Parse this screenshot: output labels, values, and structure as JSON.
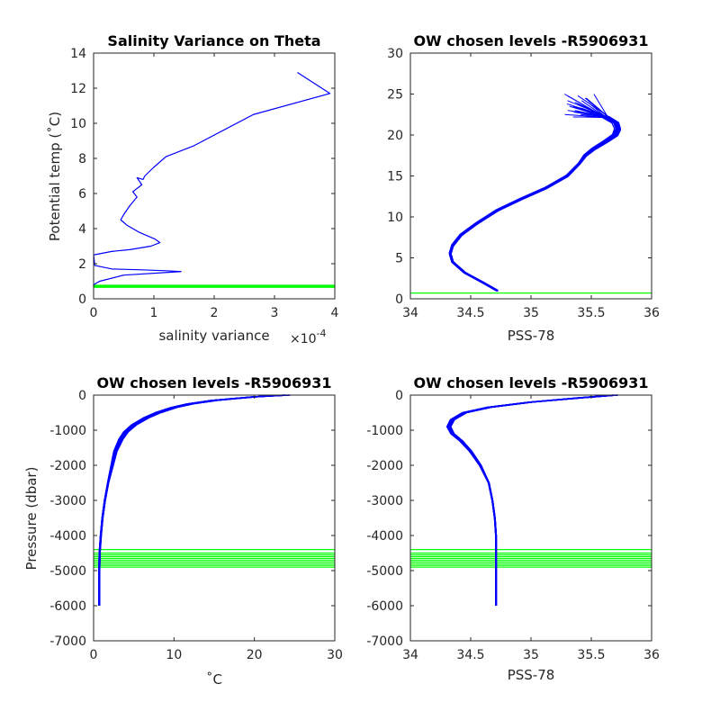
{
  "chart_data": [
    {
      "type": "line",
      "title": "Salinity Variance on Theta",
      "xlabel": "salinity variance",
      "x_exponent_label": "×10",
      "x_exponent_power": "-4",
      "ylabel": "Potential temp (˚C)",
      "xlim": [
        0,
        4
      ],
      "ylim": [
        0,
        14
      ],
      "xticks": [
        0,
        1,
        2,
        3,
        4
      ],
      "yticks": [
        0,
        2,
        4,
        6,
        8,
        10,
        12,
        14
      ],
      "xtick_labels": [
        "0",
        "1",
        "2",
        "3",
        "4"
      ],
      "ytick_labels": [
        "0",
        "2",
        "4",
        "6",
        "8",
        "10",
        "12",
        "14"
      ],
      "series": [
        {
          "color": "#0000ff",
          "x": [
            3.38,
            3.92,
            2.65,
            1.65,
            1.2,
            1.0,
            0.85,
            0.82,
            0.72,
            0.8,
            0.65,
            0.72,
            0.6,
            0.5,
            0.45,
            0.55,
            0.75,
            1.02,
            1.1,
            0.95,
            0.6,
            0.3,
            0.0,
            0.02,
            0.3,
            0.8,
            1.2,
            1.45,
            0.5,
            0.1,
            0.0,
            0.0
          ],
          "y": [
            12.9,
            11.7,
            10.5,
            8.7,
            8.1,
            7.5,
            7.0,
            6.8,
            6.9,
            6.5,
            6.1,
            5.8,
            5.3,
            4.8,
            4.5,
            4.2,
            3.8,
            3.4,
            3.2,
            3.0,
            2.8,
            2.7,
            2.5,
            1.9,
            1.7,
            1.65,
            1.6,
            1.55,
            1.35,
            1.0,
            0.8,
            0.7
          ]
        }
      ],
      "reference_levels": {
        "color": "#00ff00",
        "y": [
          0.65,
          0.68,
          0.71,
          0.74,
          0.77
        ]
      }
    },
    {
      "type": "line",
      "title": "OW chosen levels -R5906931",
      "xlabel": "PSS-78",
      "ylabel": "",
      "xlim": [
        34,
        36
      ],
      "ylim": [
        0,
        30
      ],
      "xticks": [
        34,
        34.5,
        35,
        35.5,
        36
      ],
      "yticks": [
        0,
        5,
        10,
        15,
        20,
        25,
        30
      ],
      "xtick_labels": [
        "34",
        "34.5",
        "35",
        "35.5",
        "36"
      ],
      "ytick_labels": [
        "0",
        "5",
        "10",
        "15",
        "20",
        "25",
        "30"
      ],
      "profile": {
        "color": "#0000ff",
        "s": [
          34.72,
          34.6,
          34.45,
          34.35,
          34.33,
          34.35,
          34.42,
          34.55,
          34.72,
          34.92,
          35.12,
          35.3,
          35.4,
          35.45,
          35.52,
          35.62,
          35.7,
          35.72,
          35.7,
          35.62
        ],
        "t": [
          1.0,
          2.0,
          3.2,
          4.5,
          5.5,
          6.5,
          7.8,
          9.2,
          10.8,
          12.2,
          13.5,
          15.0,
          16.5,
          17.5,
          18.3,
          19.2,
          20.0,
          20.7,
          21.5,
          22.2
        ],
        "count": 24,
        "spread_s": 0.06,
        "spread_t": 0.2,
        "tip_tails_t": [
          22.5,
          23.0,
          23.5,
          24.0,
          24.5,
          25.0,
          24.2,
          23.3,
          22.8,
          23.8,
          24.8,
          22.2
        ]
      },
      "reference_levels": {
        "color": "#00ff00",
        "y": [
          0.7
        ]
      }
    },
    {
      "type": "line",
      "title": "OW chosen levels -R5906931",
      "xlabel": "˚C",
      "ylabel": "Pressure (dbar)",
      "xlim": [
        0,
        30
      ],
      "ylim": [
        -7000,
        0
      ],
      "xticks": [
        0,
        10,
        20,
        30
      ],
      "yticks": [
        0,
        -1000,
        -2000,
        -3000,
        -4000,
        -5000,
        -6000,
        -7000
      ],
      "xtick_labels": [
        "0",
        "10",
        "20",
        "30"
      ],
      "ytick_labels": [
        "0",
        "-1000",
        "-2000",
        "-3000",
        "-4000",
        "-5000",
        "-6000",
        "-7000"
      ],
      "profile": {
        "color": "#0000ff",
        "x": [
          24.0,
          20.0,
          15.0,
          12.0,
          10.0,
          8.0,
          6.5,
          5.0,
          4.0,
          3.4,
          2.7,
          2.3,
          1.8,
          1.4,
          1.1,
          0.9,
          0.75,
          0.7,
          0.7
        ],
        "y": [
          0,
          -50,
          -150,
          -250,
          -350,
          -500,
          -650,
          -850,
          -1050,
          -1250,
          -1600,
          -2000,
          -2500,
          -3000,
          -3500,
          -4000,
          -4500,
          -5000,
          -6000
        ],
        "count": 18,
        "spread_x": 1.0
      },
      "reference_levels": {
        "color": "#00ff00",
        "y": [
          -4400,
          -4500,
          -4550,
          -4600,
          -4650,
          -4700,
          -4750,
          -4800,
          -4850,
          -4900
        ]
      }
    },
    {
      "type": "line",
      "title": "OW chosen levels -R5906931",
      "xlabel": "PSS-78",
      "ylabel": "",
      "xlim": [
        34,
        36
      ],
      "ylim": [
        -7000,
        0
      ],
      "xticks": [
        34,
        34.5,
        35,
        35.5,
        36
      ],
      "yticks": [
        0,
        -1000,
        -2000,
        -3000,
        -4000,
        -5000,
        -6000,
        -7000
      ],
      "xtick_labels": [
        "34",
        "34.5",
        "35",
        "35.5",
        "36"
      ],
      "ytick_labels": [
        "0",
        "-1000",
        "-2000",
        "-3000",
        "-4000",
        "-5000",
        "-6000",
        "-7000"
      ],
      "profile": {
        "color": "#0000ff",
        "x": [
          35.7,
          35.4,
          35.0,
          34.65,
          34.45,
          34.35,
          34.32,
          34.35,
          34.42,
          34.5,
          34.58,
          34.65,
          34.68,
          34.7,
          34.71,
          34.71,
          34.71,
          34.71
        ],
        "y": [
          0,
          -80,
          -200,
          -350,
          -500,
          -700,
          -900,
          -1100,
          -1300,
          -1600,
          -2000,
          -2500,
          -3000,
          -3500,
          -4000,
          -4500,
          -5000,
          -6000
        ],
        "count": 18,
        "spread_x": 0.05
      },
      "reference_levels": {
        "color": "#00ff00",
        "y": [
          -4400,
          -4500,
          -4550,
          -4600,
          -4650,
          -4700,
          -4750,
          -4800,
          -4850,
          -4900
        ]
      }
    }
  ]
}
